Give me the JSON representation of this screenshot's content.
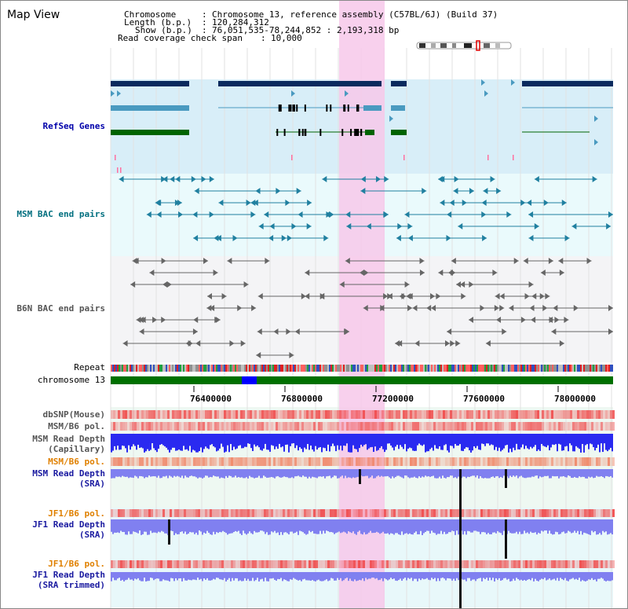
{
  "app": {
    "title": "Map View"
  },
  "header": {
    "chromosome_label": "Chromosome",
    "chromosome_value": "Chromosome 13, reference assembly (C57BL/6J) (Build 37)",
    "length_label": "Length (b.p.)",
    "length_value": "120,284,312",
    "show_label": "Show (b.p.)",
    "show_value": "76,051,535-78,244,852 : 2,193,318 bp",
    "coverage_label": "Read coverage check span",
    "coverage_value": "10,000"
  },
  "tracks": {
    "refseq": "RefSeq Genes",
    "msm_bac": "MSM BAC end pairs",
    "b6n_bac": "B6N BAC end pairs",
    "repeat": "Repeat",
    "chromosome": "chromosome 13",
    "dbsnp": "dbSNP(Mouse)",
    "msm_b6_pol_1": "MSM/B6 pol.",
    "msm_read_depth_cap_1": "MSM Read Depth",
    "msm_read_depth_cap_2": "(Capillary)",
    "msm_b6_pol_2": "MSM/B6 pol.",
    "msm_read_depth_sra_1": "MSM Read Depth",
    "msm_read_depth_sra_2": "(SRA)",
    "jf1_b6_pol_1": "JF1/B6 pol.",
    "jf1_read_depth_sra_1": "JF1 Read Depth",
    "jf1_read_depth_sra_2": "(SRA)",
    "jf1_b6_pol_2": "JF1/B6 pol.",
    "jf1_read_depth_trim_1": "JF1 Read Depth",
    "jf1_read_depth_trim_2": "(SRA trimmed)"
  },
  "axis": {
    "ticks": [
      "76400000",
      "76800000",
      "77200000",
      "77600000",
      "78000000"
    ]
  },
  "colors": {
    "refseq_dark": "#0a2a5e",
    "refseq_light": "#4a9ac0",
    "refseq_green": "#006400",
    "msm_bac": "#2080a0",
    "b6n_bac": "#666666",
    "highlight": "#f7c8ea",
    "chromosome": "#007000",
    "chromosome_marker": "#0000ff",
    "depth_blue": "#2a2af0",
    "depth_light": "#8080f0",
    "pol_red": "#f04040"
  }
}
